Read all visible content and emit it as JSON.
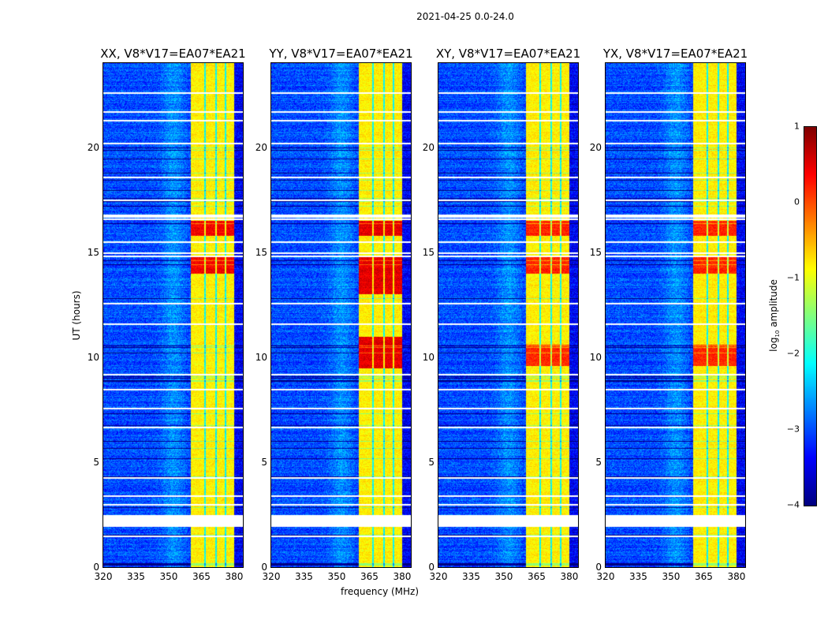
{
  "chart_data": {
    "type": "heatmap",
    "suptitle": "2021-04-25 0.0-24.0",
    "xlabel": "frequency (MHz)",
    "ylabel": "UT (hours)",
    "xlim": [
      320,
      384
    ],
    "ylim": [
      0,
      24
    ],
    "xticks": [
      "320",
      "335",
      "350",
      "365",
      "380"
    ],
    "xtick_values": [
      320,
      335,
      350,
      365,
      380
    ],
    "yticks": [
      "0",
      "5",
      "10",
      "15",
      "20"
    ],
    "ytick_values": [
      0,
      5,
      10,
      15,
      20
    ],
    "colormap": "jet",
    "panels": [
      {
        "title": "XX, V8*V17=EA07*EA21",
        "burst_hours": [
          [
            14.0,
            14.8
          ],
          [
            15.8,
            16.5
          ]
        ],
        "burst_level": 0.4
      },
      {
        "title": "YY, V8*V17=EA07*EA21",
        "burst_hours": [
          [
            13.0,
            14.8
          ],
          [
            15.8,
            16.5
          ],
          [
            9.5,
            11.0
          ]
        ],
        "burst_level": 0.5
      },
      {
        "title": "XY, V8*V17=EA07*EA21",
        "burst_hours": [
          [
            14.0,
            14.8
          ],
          [
            15.8,
            16.5
          ],
          [
            9.6,
            10.6
          ]
        ],
        "burst_level": 0.2
      },
      {
        "title": "YX, V8*V17=EA07*EA21",
        "burst_hours": [
          [
            14.0,
            14.8
          ],
          [
            15.8,
            16.5
          ],
          [
            9.6,
            10.6
          ]
        ],
        "burst_level": 0.2
      }
    ],
    "background_level_log10": -3.0,
    "rfi_band_mhz": [
      360,
      380
    ],
    "rfi_band_level_log10": -0.8,
    "flagged_hours": [
      2.0,
      2.1,
      2.2,
      2.3,
      2.4,
      1.5,
      3.0,
      3.4,
      4.3,
      6.7,
      7.6,
      8.5,
      9.2,
      11.6,
      12.6,
      14.85,
      15.0,
      15.5,
      16.6,
      16.7,
      16.8,
      17.5,
      18.6,
      20.2,
      21.3,
      21.7,
      22.6
    ],
    "colorbar": {
      "label_main": "log",
      "label_sub": "10",
      "label_rest": " amplitude",
      "ticks": [
        "1",
        "0",
        "−1",
        "−2",
        "−3",
        "−4"
      ],
      "tick_values": [
        1,
        0,
        -1,
        -2,
        -3,
        -4
      ],
      "range": [
        -4,
        1
      ]
    }
  }
}
